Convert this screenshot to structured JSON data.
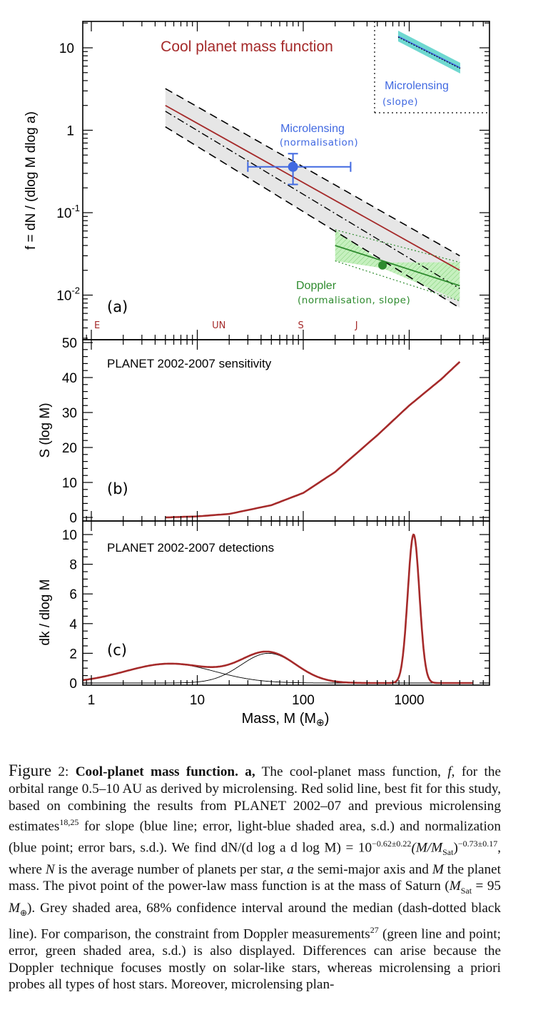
{
  "figure": {
    "panel_a": {
      "title": "Cool planet mass function",
      "ylabel": "f = dN / (dlog M dlog a)",
      "panel_label": "(a)",
      "yticks": [
        {
          "base": "10",
          "exp": "",
          "v": 10
        },
        {
          "base": "1",
          "exp": "",
          "v": 1
        },
        {
          "base": "10",
          "exp": "-1",
          "v": 0.1
        },
        {
          "base": "10",
          "exp": "-2",
          "v": 0.01
        }
      ],
      "planet_markers": [
        {
          "label": "E",
          "mass": 1
        },
        {
          "label": "UN",
          "mass": 16
        },
        {
          "label": "S",
          "mass": 95
        },
        {
          "label": "J",
          "mass": 318
        }
      ],
      "microlensing_norm": {
        "label": "Microlensing",
        "sublabel": "(normalisation)"
      },
      "doppler": {
        "label": "Doppler",
        "sublabel": "(normalisation, slope)"
      },
      "inset": {
        "label": "Microlensing",
        "sublabel": "(slope)"
      }
    },
    "panel_b": {
      "title": "PLANET 2002-2007 sensitivity",
      "ylabel": "S (log M)",
      "panel_label": "(b)",
      "yticks": [
        "0",
        "10",
        "20",
        "30",
        "40",
        "50"
      ]
    },
    "panel_c": {
      "title": "PLANET 2002-2007 detections",
      "ylabel": "dk / dlog M",
      "panel_label": "(c)",
      "yticks": [
        "0",
        "2",
        "4",
        "6",
        "8",
        "10"
      ],
      "xticks": [
        "1",
        "10",
        "100",
        "1000"
      ],
      "xlabel_text": "Mass, M (M",
      "xlabel_symbol": "⊕",
      "xlabel_end": ")"
    },
    "colors": {
      "red": "#a52a2a",
      "blue": "#4169e1",
      "green": "#2e8b2e",
      "grey_band": "#e6e6e6",
      "green_band": "#b8ecb0",
      "blue_band": "#6fd8d0"
    }
  },
  "chart_data": [
    {
      "type": "line",
      "title": "Cool planet mass function",
      "xlabel": "Mass, M (M⊕)",
      "ylabel": "f = dN / (dlog M dlog a)",
      "xscale": "log",
      "yscale": "log",
      "xlim": [
        0.8,
        4000
      ],
      "ylim": [
        0.005,
        20
      ],
      "series": [
        {
          "name": "best fit (red solid)",
          "x": [
            5,
            3000
          ],
          "y": [
            2.0,
            0.02
          ]
        },
        {
          "name": "median (dash-dotted)",
          "x": [
            5,
            3000
          ],
          "y": [
            1.7,
            0.012
          ]
        },
        {
          "name": "68% upper (dashed)",
          "x": [
            5,
            3000
          ],
          "y": [
            3.2,
            0.03
          ]
        },
        {
          "name": "68% lower (dashed)",
          "x": [
            5,
            3000
          ],
          "y": [
            1.1,
            0.007
          ]
        },
        {
          "name": "Doppler",
          "x": [
            200,
            3000
          ],
          "y": [
            0.04,
            0.013
          ]
        }
      ],
      "points": [
        {
          "name": "Microlensing (normalisation)",
          "x": 80,
          "y": 0.36,
          "xerr": [
            30,
            280
          ],
          "yerr": [
            0.22,
            0.52
          ]
        },
        {
          "name": "Doppler point",
          "x": 560,
          "y": 0.023
        }
      ],
      "grid": false
    },
    {
      "type": "line",
      "title": "PLANET 2002-2007 sensitivity",
      "ylabel": "S (log M)",
      "xscale": "log",
      "xlim": [
        0.8,
        4000
      ],
      "ylim": [
        0,
        50
      ],
      "series": [
        {
          "name": "sensitivity",
          "x": [
            5,
            10,
            20,
            50,
            100,
            200,
            500,
            1000,
            2000,
            3000
          ],
          "y": [
            0,
            0.3,
            1,
            3.5,
            7,
            13,
            23.5,
            32,
            39.5,
            44.5
          ]
        }
      ]
    },
    {
      "type": "line",
      "title": "PLANET 2002-2007 detections",
      "xlabel": "Mass, M (M⊕)",
      "ylabel": "dk / dlog M",
      "xscale": "log",
      "xlim": [
        0.8,
        4000
      ],
      "ylim": [
        0,
        10
      ],
      "series": [
        {
          "name": "total",
          "peaks": [
            {
              "center": 5.5,
              "height": 1.3
            },
            {
              "center": 47,
              "height": 2.0
            },
            {
              "center": 1100,
              "height": 10.0
            }
          ]
        }
      ]
    }
  ],
  "caption": {
    "fig_word": "Figure",
    "fig_num": " 2: ",
    "bold_title": "Cool-planet mass function. a,",
    "p1": " The cool-planet mass function, ",
    "f": "f",
    "p2": ", for the orbital range 0.5–10 AU as derived by microlensing. Red solid line, best fit for this study, based on combining the results from PLANET 2002–07 and previous microlensing estimates",
    "ref1": "18,25",
    "p3": " for slope (blue line; error, light-blue shaded area, s.d.) and normalization (blue point; error bars, s.d.). We find ",
    "eq1": "dN/(d log a d log M) = 10",
    "eq1_exp": "−0.62±0.22",
    "eq2": "(M/M",
    "eq2_sub": "Sat",
    "eq3": ")",
    "eq3_exp": "−0.73±0.17",
    "p4": ", where ",
    "N": "N",
    "p5": " is the average number of planets per star, ",
    "a": "a",
    "p6": " the semi-major axis and ",
    "M": "M",
    "p7": " the planet mass. The pivot point of the power-law mass function is at the mass of Saturn (",
    "msat": "M",
    "msat_sub": "Sat",
    "p8": " = 95 ",
    "mearth": "M",
    "mearth_sub": "⊕",
    "p9": "). Grey shaded area, 68% confidence interval around the median (dash-dotted black line). For comparison, the constraint from Doppler measurements",
    "ref2": "27",
    "p10": " (green line and point; error, green shaded area, s.d.) is also displayed. Differences can arise because the Doppler technique focuses mostly on solar-like stars, whereas microlensing a priori probes all types of host stars. Moreover, microlensing plan-"
  }
}
